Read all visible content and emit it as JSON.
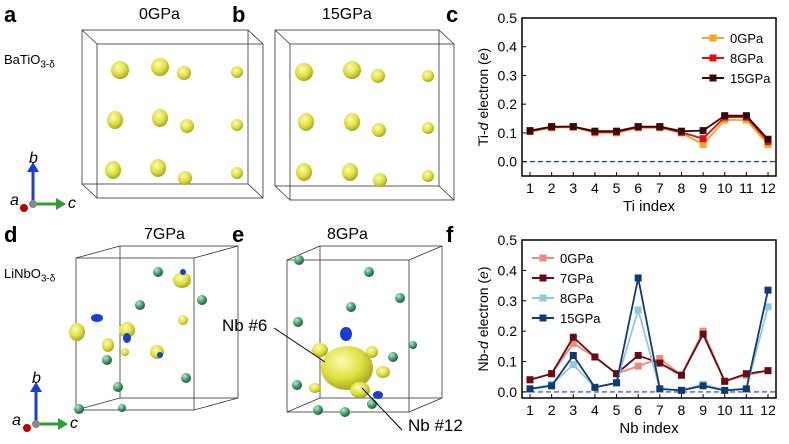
{
  "panels": {
    "a": {
      "letter": "a",
      "title": "0GPa"
    },
    "b": {
      "letter": "b",
      "title": "15GPa"
    },
    "c": {
      "letter": "c"
    },
    "d": {
      "letter": "d",
      "title": "7GPa"
    },
    "e": {
      "letter": "e",
      "title": "8GPa"
    },
    "f": {
      "letter": "f"
    }
  },
  "materials": {
    "top": {
      "base": "BaTiO",
      "sub": "3-δ"
    },
    "bottom": {
      "base": "LiNbO",
      "sub": "3-δ"
    }
  },
  "axes_triad": {
    "a": "a",
    "b": "b",
    "c": "c"
  },
  "callouts": {
    "nb6": "Nb #6",
    "nb12": "Nb #12"
  },
  "colors": {
    "isosurface": "#e0e040",
    "negative": "#1a3cd8",
    "nb_atom": "#3f9e6e",
    "triad_b": "#1a3cd8",
    "triad_c": "#2ca02c",
    "triad_a": "#c00000"
  },
  "chart_data": [
    {
      "type": "line",
      "ylabel_pre": "Ti-",
      "ylabel_italic": "d",
      "ylabel_post": " electron (",
      "ylabel_unit": "e",
      "ylabel_end": ")",
      "xlabel": "Ti index",
      "x": [
        1,
        2,
        3,
        4,
        5,
        6,
        7,
        8,
        9,
        10,
        11,
        12
      ],
      "ylim": [
        -0.05,
        0.5
      ],
      "yticks": [
        "0.0",
        "0.1",
        "0.2",
        "0.3",
        "0.4",
        "0.5"
      ],
      "ytick_values": [
        0.0,
        0.1,
        0.2,
        0.3,
        0.4,
        0.5
      ],
      "reference_line": 0.0,
      "legend_position": "top-right",
      "series": [
        {
          "name": "0GPa",
          "color": "#f5a623",
          "values": [
            0.105,
            0.118,
            0.12,
            0.1,
            0.1,
            0.118,
            0.118,
            0.1,
            0.06,
            0.145,
            0.145,
            0.06
          ]
        },
        {
          "name": "8GPa",
          "color": "#e01010",
          "values": [
            0.105,
            0.12,
            0.122,
            0.103,
            0.103,
            0.12,
            0.12,
            0.102,
            0.08,
            0.155,
            0.155,
            0.07
          ]
        },
        {
          "name": "15GPa",
          "color": "#3a0808",
          "values": [
            0.108,
            0.122,
            0.122,
            0.106,
            0.106,
            0.122,
            0.122,
            0.106,
            0.108,
            0.16,
            0.16,
            0.078
          ]
        }
      ]
    },
    {
      "type": "line",
      "ylabel_pre": "Nb-",
      "ylabel_italic": "d",
      "ylabel_post": " electron (",
      "ylabel_unit": "e",
      "ylabel_end": ")",
      "xlabel": "Nb index",
      "x": [
        1,
        2,
        3,
        4,
        5,
        6,
        7,
        8,
        9,
        10,
        11,
        12
      ],
      "ylim": [
        -0.02,
        0.5
      ],
      "yticks": [
        "0.0",
        "0.1",
        "0.2",
        "0.3",
        "0.4",
        "0.5"
      ],
      "ytick_values": [
        0.0,
        0.1,
        0.2,
        0.3,
        0.4,
        0.5
      ],
      "reference_line": 0.0,
      "legend_position": "top-left",
      "series": [
        {
          "name": "0GPa",
          "color": "#f08878",
          "values": [
            0.04,
            0.06,
            0.16,
            0.115,
            0.06,
            0.085,
            0.11,
            0.055,
            0.2,
            0.035,
            0.055,
            0.07
          ]
        },
        {
          "name": "7GPa",
          "color": "#6b0a14",
          "values": [
            0.04,
            0.06,
            0.18,
            0.115,
            0.06,
            0.12,
            0.095,
            0.055,
            0.19,
            0.035,
            0.06,
            0.07
          ]
        },
        {
          "name": "8GPa",
          "color": "#90c8e0",
          "values": [
            0.01,
            0.025,
            0.09,
            0.015,
            0.03,
            0.27,
            0.01,
            0.005,
            0.025,
            0.005,
            0.01,
            0.28
          ]
        },
        {
          "name": "15GPa",
          "color": "#0d3a78",
          "values": [
            0.01,
            0.02,
            0.12,
            0.015,
            0.03,
            0.375,
            0.01,
            0.005,
            0.02,
            0.005,
            0.01,
            0.335
          ]
        }
      ]
    }
  ]
}
